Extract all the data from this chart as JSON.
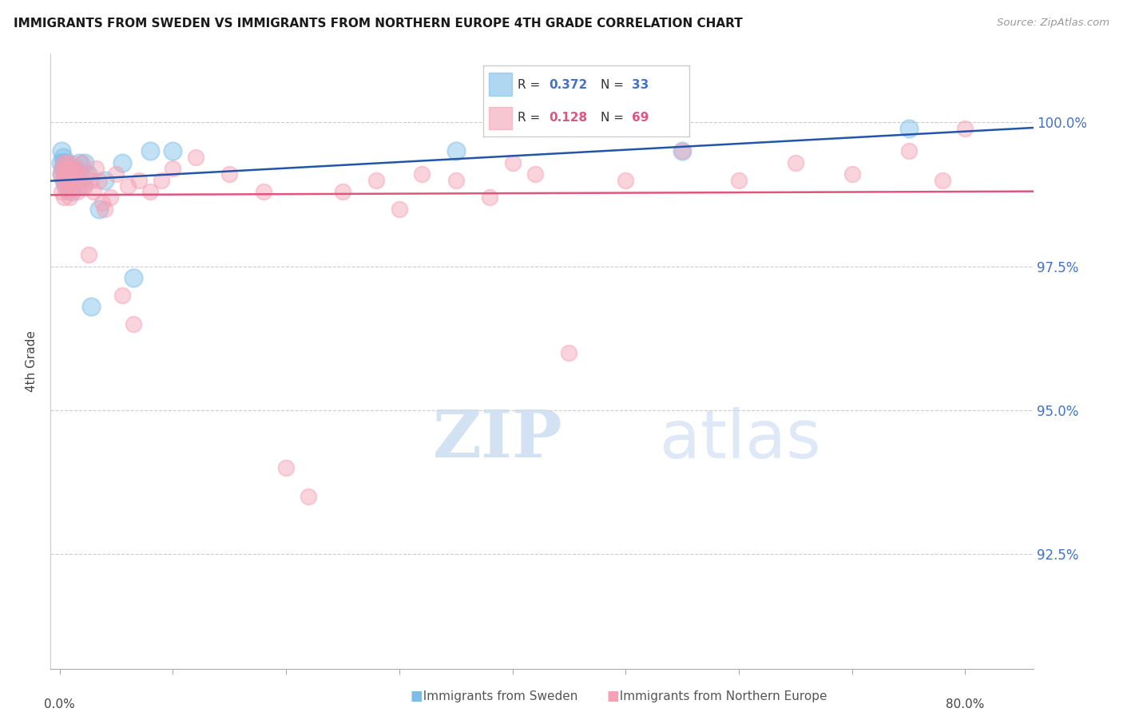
{
  "title": "IMMIGRANTS FROM SWEDEN VS IMMIGRANTS FROM NORTHERN EUROPE 4TH GRADE CORRELATION CHART",
  "source": "Source: ZipAtlas.com",
  "ylabel": "4th Grade",
  "ytick_vals": [
    92.5,
    95.0,
    97.5,
    100.0
  ],
  "ylim": [
    90.5,
    101.2
  ],
  "xlim": [
    -0.008,
    0.86
  ],
  "blue_R": 0.372,
  "blue_N": 33,
  "pink_R": 0.128,
  "pink_N": 69,
  "blue_color": "#7abde8",
  "pink_color": "#f4a0b5",
  "trendline_blue": "#2255aa",
  "trendline_pink": "#e05580",
  "blue_x": [
    0.001,
    0.002,
    0.002,
    0.003,
    0.003,
    0.004,
    0.004,
    0.005,
    0.005,
    0.006,
    0.007,
    0.008,
    0.009,
    0.01,
    0.011,
    0.012,
    0.013,
    0.015,
    0.017,
    0.018,
    0.02,
    0.022,
    0.025,
    0.028,
    0.035,
    0.04,
    0.055,
    0.065,
    0.08,
    0.1,
    0.35,
    0.55,
    0.75
  ],
  "blue_y": [
    99.3,
    99.5,
    99.1,
    99.4,
    99.2,
    99.0,
    99.3,
    98.9,
    99.1,
    99.3,
    99.2,
    99.1,
    99.0,
    99.2,
    98.8,
    99.1,
    99.2,
    99.0,
    99.3,
    99.1,
    98.9,
    99.3,
    99.1,
    96.8,
    98.5,
    99.0,
    99.3,
    97.3,
    99.5,
    99.5,
    99.5,
    99.5,
    99.9
  ],
  "pink_x": [
    0.001,
    0.002,
    0.002,
    0.003,
    0.003,
    0.004,
    0.004,
    0.005,
    0.005,
    0.006,
    0.006,
    0.007,
    0.007,
    0.008,
    0.008,
    0.009,
    0.009,
    0.01,
    0.01,
    0.011,
    0.012,
    0.013,
    0.014,
    0.015,
    0.016,
    0.017,
    0.018,
    0.019,
    0.02,
    0.022,
    0.024,
    0.026,
    0.028,
    0.03,
    0.032,
    0.035,
    0.038,
    0.04,
    0.045,
    0.05,
    0.055,
    0.06,
    0.065,
    0.07,
    0.08,
    0.09,
    0.1,
    0.12,
    0.15,
    0.18,
    0.2,
    0.22,
    0.25,
    0.28,
    0.3,
    0.32,
    0.35,
    0.38,
    0.4,
    0.42,
    0.45,
    0.5,
    0.55,
    0.6,
    0.65,
    0.7,
    0.75,
    0.78,
    0.8
  ],
  "pink_y": [
    99.1,
    98.8,
    99.2,
    99.0,
    99.3,
    99.1,
    98.7,
    99.2,
    98.9,
    99.0,
    99.3,
    99.1,
    98.8,
    99.2,
    99.0,
    98.7,
    99.1,
    99.0,
    99.3,
    99.2,
    99.1,
    98.9,
    99.0,
    99.2,
    98.8,
    99.1,
    98.9,
    99.0,
    99.3,
    98.9,
    99.1,
    97.7,
    99.0,
    98.8,
    99.2,
    99.0,
    98.6,
    98.5,
    98.7,
    99.1,
    97.0,
    98.9,
    96.5,
    99.0,
    98.8,
    99.0,
    99.2,
    99.4,
    99.1,
    98.8,
    94.0,
    93.5,
    98.8,
    99.0,
    98.5,
    99.1,
    99.0,
    98.7,
    99.3,
    99.1,
    96.0,
    99.0,
    99.5,
    99.0,
    99.3,
    99.1,
    99.5,
    99.0,
    99.9
  ],
  "background_color": "#ffffff",
  "grid_color": "#cccccc",
  "legend_blue_text_color": "#4472c4",
  "legend_pink_text_color": "#e05580",
  "source_color": "#999999",
  "axis_label_color": "#444444",
  "right_tick_color": "#4472c4"
}
